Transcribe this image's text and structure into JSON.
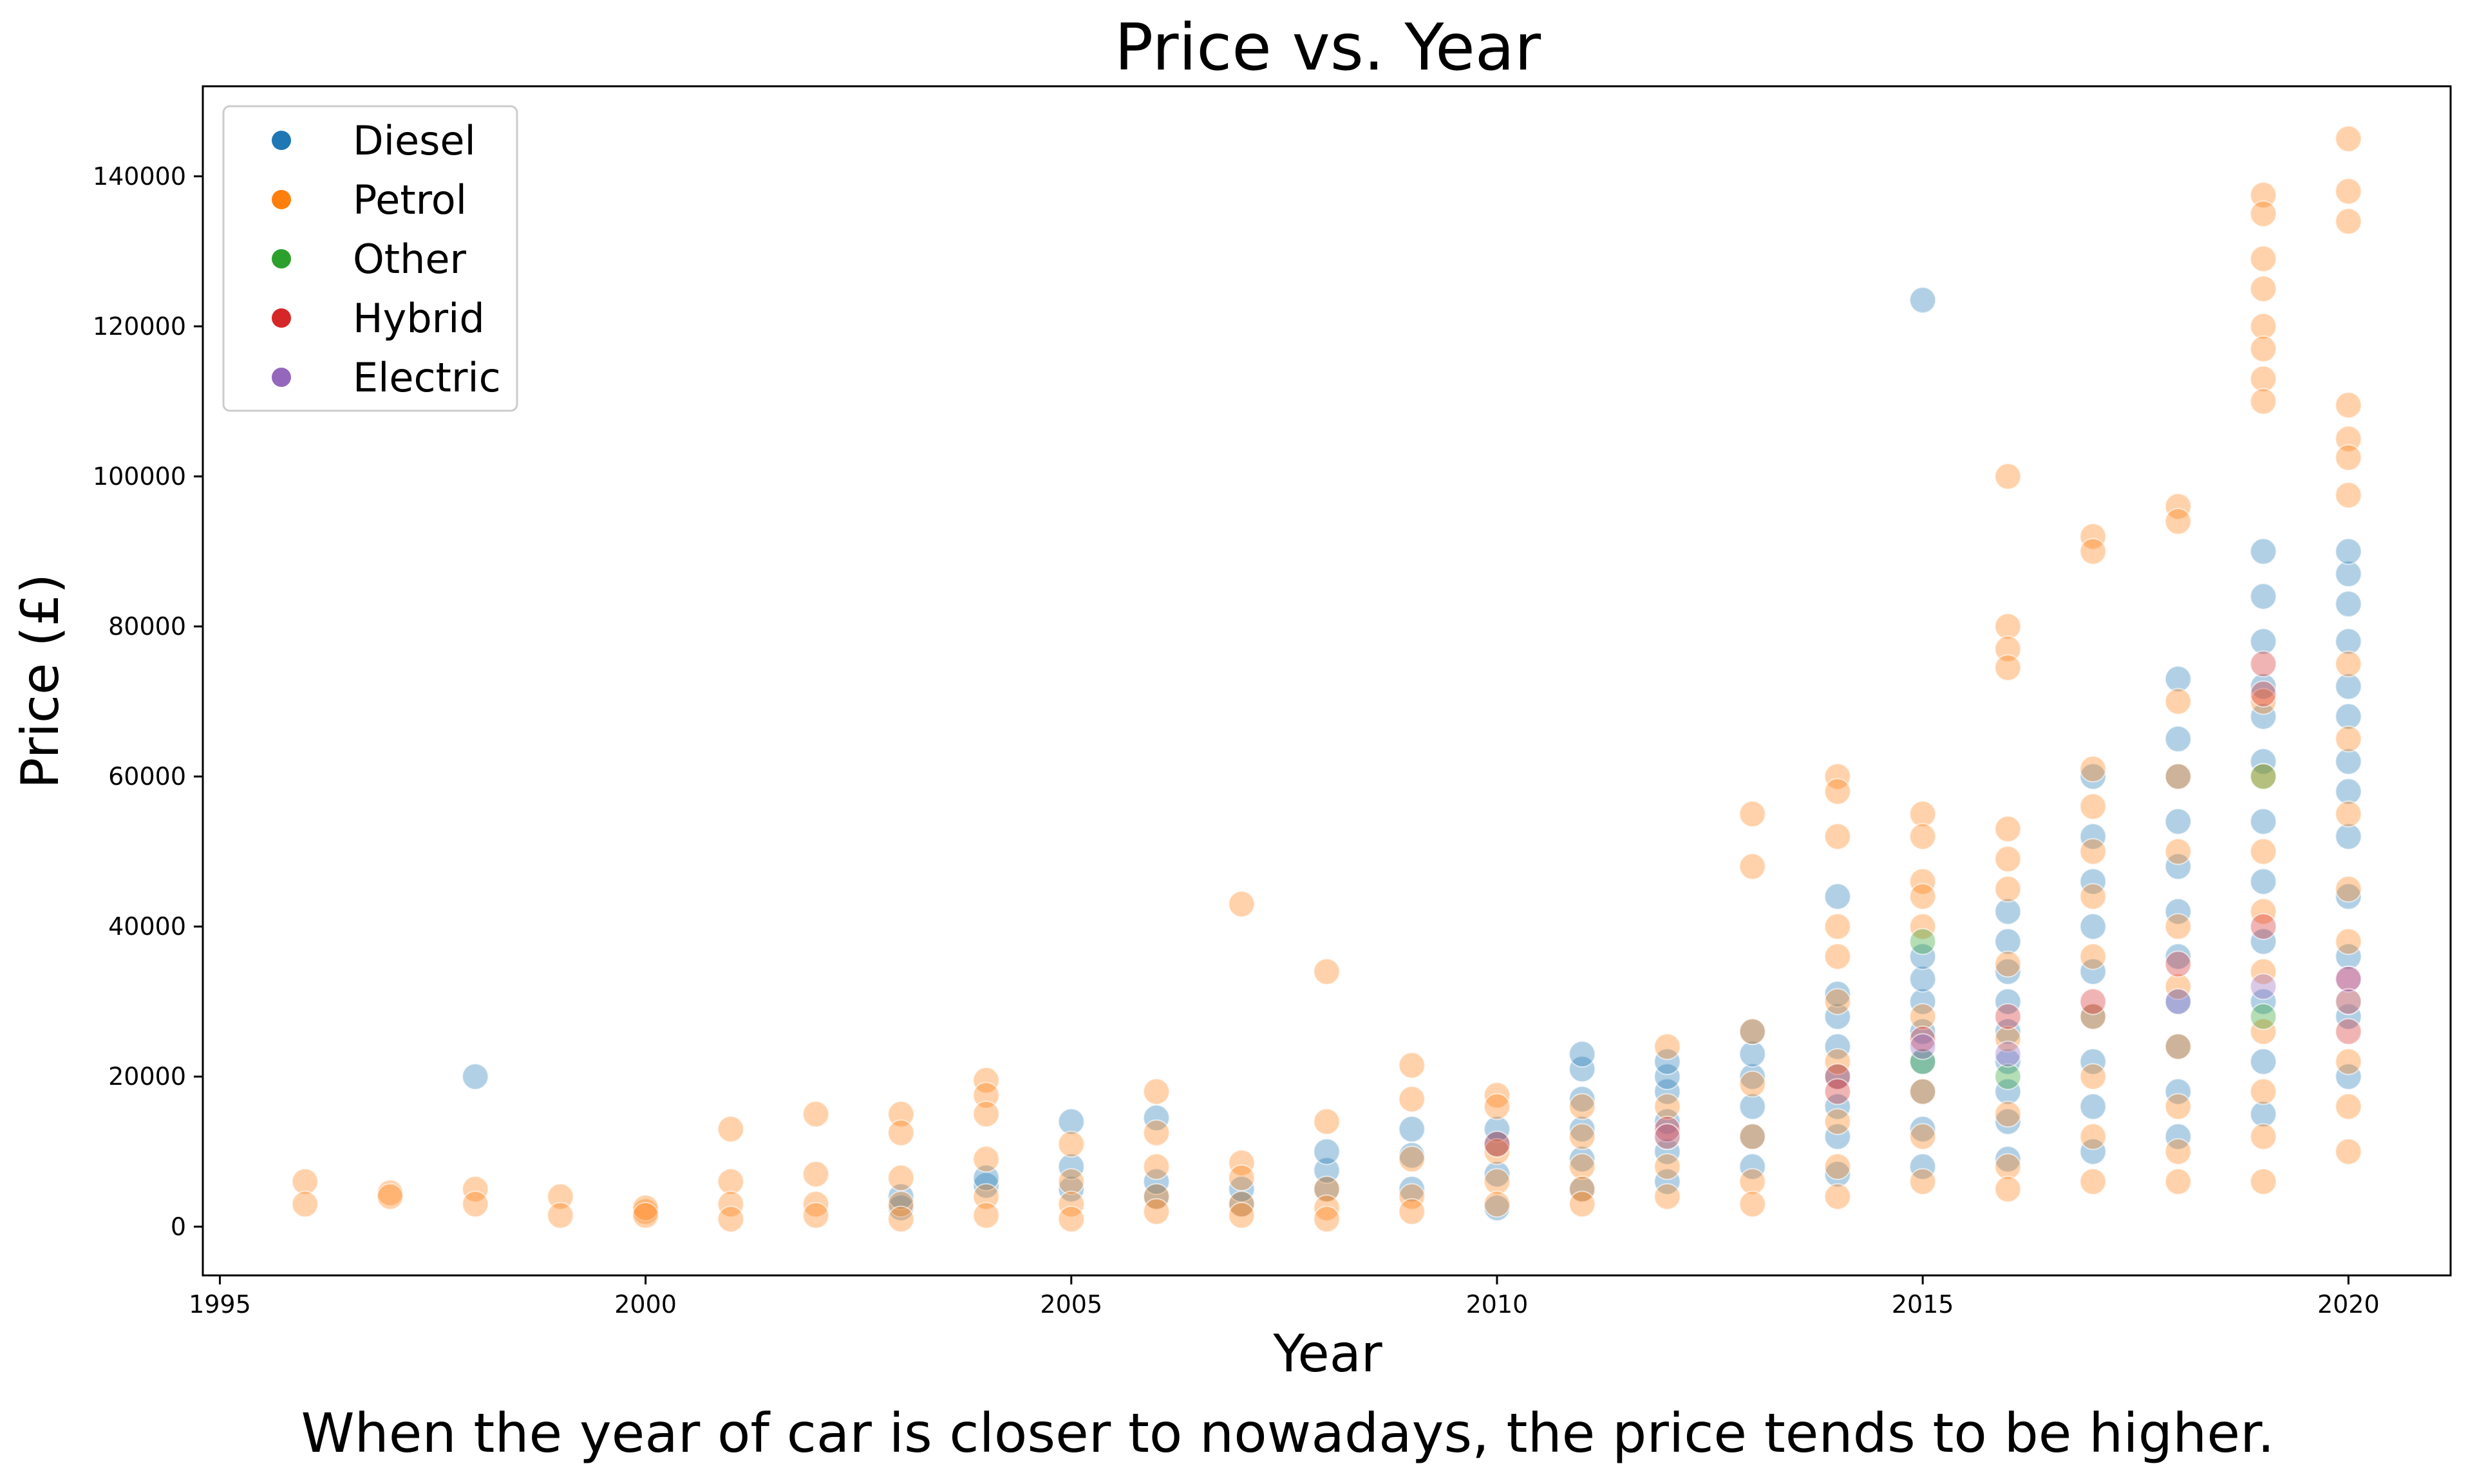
{
  "chart_data": {
    "type": "scatter",
    "title": "Price vs. Year",
    "xlabel": "Year",
    "ylabel": "Price (£)",
    "caption": "When the year of car is closer to nowadays, the price tends to be higher.",
    "xlim": [
      1994.8,
      2021.2
    ],
    "ylim": [
      -6500,
      152000
    ],
    "xticks": [
      1995,
      2000,
      2005,
      2010,
      2015,
      2020
    ],
    "yticks": [
      0,
      20000,
      40000,
      60000,
      80000,
      100000,
      120000,
      140000
    ],
    "grid": false,
    "legend_position": "top-left",
    "point_alpha": 0.35,
    "series": [
      {
        "name": "Diesel",
        "color": "#1f77b4",
        "points": [
          [
            1998,
            20000
          ],
          [
            2003,
            2500
          ],
          [
            2003,
            4000
          ],
          [
            2004,
            5500
          ],
          [
            2004,
            6500
          ],
          [
            2005,
            5000
          ],
          [
            2005,
            8000
          ],
          [
            2005,
            14000
          ],
          [
            2006,
            4000
          ],
          [
            2006,
            6000
          ],
          [
            2006,
            14500
          ],
          [
            2007,
            3000
          ],
          [
            2007,
            5000
          ],
          [
            2008,
            5000
          ],
          [
            2008,
            7500
          ],
          [
            2008,
            10000
          ],
          [
            2009,
            5000
          ],
          [
            2009,
            9500
          ],
          [
            2009,
            13000
          ],
          [
            2010,
            2500
          ],
          [
            2010,
            7000
          ],
          [
            2010,
            11000
          ],
          [
            2010,
            13000
          ],
          [
            2011,
            5000
          ],
          [
            2011,
            9000
          ],
          [
            2011,
            13000
          ],
          [
            2011,
            17000
          ],
          [
            2011,
            21000
          ],
          [
            2011,
            23000
          ],
          [
            2012,
            6000
          ],
          [
            2012,
            10000
          ],
          [
            2012,
            14000
          ],
          [
            2012,
            18000
          ],
          [
            2012,
            20000
          ],
          [
            2012,
            22000
          ],
          [
            2013,
            8000
          ],
          [
            2013,
            12000
          ],
          [
            2013,
            16000
          ],
          [
            2013,
            20000
          ],
          [
            2013,
            23000
          ],
          [
            2013,
            26000
          ],
          [
            2014,
            7000
          ],
          [
            2014,
            12000
          ],
          [
            2014,
            16000
          ],
          [
            2014,
            20000
          ],
          [
            2014,
            24000
          ],
          [
            2014,
            28000
          ],
          [
            2014,
            31000
          ],
          [
            2014,
            44000
          ],
          [
            2015,
            8000
          ],
          [
            2015,
            13000
          ],
          [
            2015,
            18000
          ],
          [
            2015,
            22000
          ],
          [
            2015,
            26000
          ],
          [
            2015,
            30000
          ],
          [
            2015,
            33000
          ],
          [
            2015,
            36000
          ],
          [
            2015,
            123500
          ],
          [
            2016,
            9000
          ],
          [
            2016,
            14000
          ],
          [
            2016,
            18000
          ],
          [
            2016,
            22000
          ],
          [
            2016,
            26000
          ],
          [
            2016,
            30000
          ],
          [
            2016,
            34000
          ],
          [
            2016,
            38000
          ],
          [
            2016,
            42000
          ],
          [
            2017,
            10000
          ],
          [
            2017,
            16000
          ],
          [
            2017,
            22000
          ],
          [
            2017,
            28000
          ],
          [
            2017,
            34000
          ],
          [
            2017,
            40000
          ],
          [
            2017,
            46000
          ],
          [
            2017,
            52000
          ],
          [
            2017,
            60000
          ],
          [
            2018,
            12000
          ],
          [
            2018,
            18000
          ],
          [
            2018,
            24000
          ],
          [
            2018,
            30000
          ],
          [
            2018,
            36000
          ],
          [
            2018,
            42000
          ],
          [
            2018,
            48000
          ],
          [
            2018,
            54000
          ],
          [
            2018,
            60000
          ],
          [
            2018,
            65000
          ],
          [
            2018,
            73000
          ],
          [
            2019,
            15000
          ],
          [
            2019,
            22000
          ],
          [
            2019,
            30000
          ],
          [
            2019,
            38000
          ],
          [
            2019,
            46000
          ],
          [
            2019,
            54000
          ],
          [
            2019,
            62000
          ],
          [
            2019,
            68000
          ],
          [
            2019,
            72000
          ],
          [
            2019,
            78000
          ],
          [
            2019,
            84000
          ],
          [
            2019,
            90000
          ],
          [
            2020,
            20000
          ],
          [
            2020,
            28000
          ],
          [
            2020,
            36000
          ],
          [
            2020,
            44000
          ],
          [
            2020,
            52000
          ],
          [
            2020,
            58000
          ],
          [
            2020,
            62000
          ],
          [
            2020,
            68000
          ],
          [
            2020,
            72000
          ],
          [
            2020,
            78000
          ],
          [
            2020,
            83000
          ],
          [
            2020,
            87000
          ],
          [
            2020,
            90000
          ]
        ]
      },
      {
        "name": "Petrol",
        "color": "#ff7f0e",
        "points": [
          [
            1996,
            6000
          ],
          [
            1996,
            3000
          ],
          [
            1997,
            4500
          ],
          [
            1997,
            4000
          ],
          [
            1998,
            5000
          ],
          [
            1998,
            3000
          ],
          [
            1999,
            4000
          ],
          [
            1999,
            1500
          ],
          [
            2000,
            2000
          ],
          [
            2000,
            2500
          ],
          [
            2000,
            1500
          ],
          [
            2001,
            13000
          ],
          [
            2001,
            6000
          ],
          [
            2001,
            3000
          ],
          [
            2001,
            1000
          ],
          [
            2002,
            15000
          ],
          [
            2002,
            7000
          ],
          [
            2002,
            3000
          ],
          [
            2002,
            1500
          ],
          [
            2003,
            15000
          ],
          [
            2003,
            12500
          ],
          [
            2003,
            6500
          ],
          [
            2003,
            3000
          ],
          [
            2003,
            1000
          ],
          [
            2004,
            19500
          ],
          [
            2004,
            17500
          ],
          [
            2004,
            15000
          ],
          [
            2004,
            9000
          ],
          [
            2004,
            4000
          ],
          [
            2004,
            1500
          ],
          [
            2005,
            11000
          ],
          [
            2005,
            6000
          ],
          [
            2005,
            3000
          ],
          [
            2005,
            1000
          ],
          [
            2006,
            18000
          ],
          [
            2006,
            12500
          ],
          [
            2006,
            8000
          ],
          [
            2006,
            4000
          ],
          [
            2006,
            2000
          ],
          [
            2007,
            43000
          ],
          [
            2007,
            8500
          ],
          [
            2007,
            6500
          ],
          [
            2007,
            3000
          ],
          [
            2007,
            1500
          ],
          [
            2008,
            34000
          ],
          [
            2008,
            14000
          ],
          [
            2008,
            5000
          ],
          [
            2008,
            2500
          ],
          [
            2008,
            1000
          ],
          [
            2009,
            21500
          ],
          [
            2009,
            17000
          ],
          [
            2009,
            9000
          ],
          [
            2009,
            4000
          ],
          [
            2009,
            2000
          ],
          [
            2010,
            17500
          ],
          [
            2010,
            16000
          ],
          [
            2010,
            10000
          ],
          [
            2010,
            6000
          ],
          [
            2010,
            3000
          ],
          [
            2011,
            16000
          ],
          [
            2011,
            12000
          ],
          [
            2011,
            8000
          ],
          [
            2011,
            5000
          ],
          [
            2011,
            3000
          ],
          [
            2012,
            24000
          ],
          [
            2012,
            16000
          ],
          [
            2012,
            12000
          ],
          [
            2012,
            8000
          ],
          [
            2012,
            4000
          ],
          [
            2013,
            55000
          ],
          [
            2013,
            48000
          ],
          [
            2013,
            26000
          ],
          [
            2013,
            19000
          ],
          [
            2013,
            12000
          ],
          [
            2013,
            6000
          ],
          [
            2013,
            3000
          ],
          [
            2014,
            60000
          ],
          [
            2014,
            58000
          ],
          [
            2014,
            52000
          ],
          [
            2014,
            40000
          ],
          [
            2014,
            36000
          ],
          [
            2014,
            30000
          ],
          [
            2014,
            22000
          ],
          [
            2014,
            14000
          ],
          [
            2014,
            8000
          ],
          [
            2014,
            4000
          ],
          [
            2015,
            55000
          ],
          [
            2015,
            52000
          ],
          [
            2015,
            46000
          ],
          [
            2015,
            44000
          ],
          [
            2015,
            40000
          ],
          [
            2015,
            28000
          ],
          [
            2015,
            18000
          ],
          [
            2015,
            12000
          ],
          [
            2015,
            6000
          ],
          [
            2016,
            100000
          ],
          [
            2016,
            80000
          ],
          [
            2016,
            77000
          ],
          [
            2016,
            74500
          ],
          [
            2016,
            53000
          ],
          [
            2016,
            49000
          ],
          [
            2016,
            45000
          ],
          [
            2016,
            35000
          ],
          [
            2016,
            25000
          ],
          [
            2016,
            15000
          ],
          [
            2016,
            8000
          ],
          [
            2016,
            5000
          ],
          [
            2017,
            92000
          ],
          [
            2017,
            90000
          ],
          [
            2017,
            61000
          ],
          [
            2017,
            56000
          ],
          [
            2017,
            50000
          ],
          [
            2017,
            44000
          ],
          [
            2017,
            36000
          ],
          [
            2017,
            28000
          ],
          [
            2017,
            20000
          ],
          [
            2017,
            12000
          ],
          [
            2017,
            6000
          ],
          [
            2018,
            96000
          ],
          [
            2018,
            94000
          ],
          [
            2018,
            70000
          ],
          [
            2018,
            60000
          ],
          [
            2018,
            50000
          ],
          [
            2018,
            40000
          ],
          [
            2018,
            32000
          ],
          [
            2018,
            24000
          ],
          [
            2018,
            16000
          ],
          [
            2018,
            10000
          ],
          [
            2018,
            6000
          ],
          [
            2019,
            137500
          ],
          [
            2019,
            135000
          ],
          [
            2019,
            129000
          ],
          [
            2019,
            125000
          ],
          [
            2019,
            120000
          ],
          [
            2019,
            117000
          ],
          [
            2019,
            113000
          ],
          [
            2019,
            110000
          ],
          [
            2019,
            70000
          ],
          [
            2019,
            60000
          ],
          [
            2019,
            50000
          ],
          [
            2019,
            42000
          ],
          [
            2019,
            34000
          ],
          [
            2019,
            26000
          ],
          [
            2019,
            18000
          ],
          [
            2019,
            12000
          ],
          [
            2019,
            6000
          ],
          [
            2020,
            145000
          ],
          [
            2020,
            138000
          ],
          [
            2020,
            134000
          ],
          [
            2020,
            109500
          ],
          [
            2020,
            105000
          ],
          [
            2020,
            102500
          ],
          [
            2020,
            97500
          ],
          [
            2020,
            75000
          ],
          [
            2020,
            65000
          ],
          [
            2020,
            55000
          ],
          [
            2020,
            45000
          ],
          [
            2020,
            38000
          ],
          [
            2020,
            30000
          ],
          [
            2020,
            22000
          ],
          [
            2020,
            16000
          ],
          [
            2020,
            10000
          ]
        ]
      },
      {
        "name": "Other",
        "color": "#2ca02c",
        "points": [
          [
            2015,
            38000
          ],
          [
            2015,
            22000
          ],
          [
            2016,
            20000
          ],
          [
            2019,
            60000
          ],
          [
            2019,
            28000
          ]
        ]
      },
      {
        "name": "Hybrid",
        "color": "#d62728",
        "points": [
          [
            2010,
            11000
          ],
          [
            2012,
            13000
          ],
          [
            2014,
            20000
          ],
          [
            2014,
            18000
          ],
          [
            2015,
            25000
          ],
          [
            2016,
            28000
          ],
          [
            2017,
            30000
          ],
          [
            2018,
            35000
          ],
          [
            2019,
            75000
          ],
          [
            2019,
            71000
          ],
          [
            2019,
            40000
          ],
          [
            2020,
            33000
          ],
          [
            2020,
            26000
          ]
        ]
      },
      {
        "name": "Electric",
        "color": "#9467bd",
        "points": [
          [
            2012,
            12000
          ],
          [
            2015,
            24000
          ],
          [
            2016,
            23000
          ],
          [
            2018,
            30000
          ],
          [
            2019,
            32000
          ],
          [
            2020,
            33000
          ],
          [
            2020,
            30000
          ]
        ]
      }
    ]
  }
}
